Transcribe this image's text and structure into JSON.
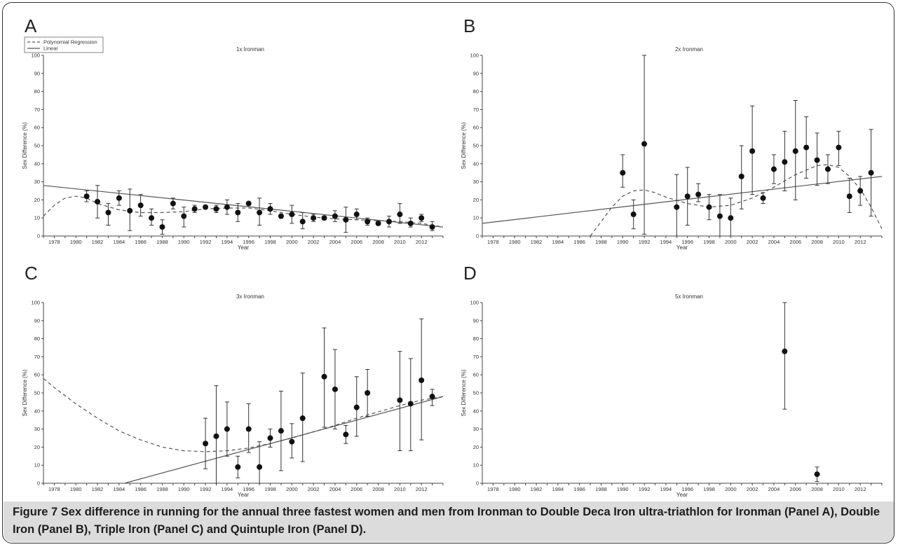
{
  "caption": {
    "prefix": "Figure 7",
    "text": " Sex difference in running for the annual three fastest women and men from Ironman to Double Deca Iron ultra-triathlon for Ironman (Panel A), Double Iron (Panel B), Triple Iron (Panel C) and Quintuple Iron (Panel D)."
  },
  "chart_data": [
    {
      "panel": "A",
      "type": "scatter",
      "title": "1x Ironman",
      "xlabel": "Year",
      "ylabel": "Sex Difference (%)",
      "xlim": [
        1977,
        2014
      ],
      "ylim": [
        0,
        100
      ],
      "x_ticks": [
        1978,
        1980,
        1982,
        1984,
        1986,
        1988,
        1990,
        1992,
        1994,
        1996,
        1998,
        2000,
        2002,
        2004,
        2006,
        2008,
        2010,
        2012
      ],
      "y_ticks": [
        0,
        10,
        20,
        30,
        40,
        50,
        60,
        70,
        80,
        90,
        100
      ],
      "legend": {
        "position": "top-left",
        "entries": [
          "Polynomial Regression",
          "Linear"
        ]
      },
      "points": [
        {
          "x": 1981,
          "y": 22,
          "lo": 19,
          "hi": 25
        },
        {
          "x": 1982,
          "y": 19,
          "lo": 10,
          "hi": 28
        },
        {
          "x": 1983,
          "y": 13,
          "lo": 6,
          "hi": 18
        },
        {
          "x": 1984,
          "y": 21,
          "lo": 17,
          "hi": 25
        },
        {
          "x": 1985,
          "y": 14,
          "lo": 3,
          "hi": 26
        },
        {
          "x": 1986,
          "y": 17,
          "lo": 11,
          "hi": 23
        },
        {
          "x": 1987,
          "y": 10,
          "lo": 6,
          "hi": 15
        },
        {
          "x": 1988,
          "y": 5,
          "lo": 1,
          "hi": 9
        },
        {
          "x": 1989,
          "y": 18,
          "lo": 15,
          "hi": 21
        },
        {
          "x": 1990,
          "y": 11,
          "lo": 5,
          "hi": 16
        },
        {
          "x": 1991,
          "y": 15,
          "lo": 13,
          "hi": 17
        },
        {
          "x": 1992,
          "y": 16,
          "lo": 15,
          "hi": 17
        },
        {
          "x": 1993,
          "y": 15,
          "lo": 13,
          "hi": 17
        },
        {
          "x": 1994,
          "y": 16,
          "lo": 12,
          "hi": 20
        },
        {
          "x": 1995,
          "y": 13,
          "lo": 8,
          "hi": 18
        },
        {
          "x": 1996,
          "y": 18,
          "lo": 17,
          "hi": 19
        },
        {
          "x": 1997,
          "y": 13,
          "lo": 6,
          "hi": 21
        },
        {
          "x": 1998,
          "y": 15,
          "lo": 12,
          "hi": 18
        },
        {
          "x": 1999,
          "y": 11,
          "lo": 10,
          "hi": 12
        },
        {
          "x": 2000,
          "y": 12,
          "lo": 7,
          "hi": 17
        },
        {
          "x": 2001,
          "y": 8,
          "lo": 4,
          "hi": 13
        },
        {
          "x": 2002,
          "y": 10,
          "lo": 8,
          "hi": 12
        },
        {
          "x": 2003,
          "y": 10,
          "lo": 9,
          "hi": 11
        },
        {
          "x": 2004,
          "y": 11,
          "lo": 8,
          "hi": 14
        },
        {
          "x": 2005,
          "y": 9,
          "lo": 2,
          "hi": 16
        },
        {
          "x": 2006,
          "y": 12,
          "lo": 9,
          "hi": 15
        },
        {
          "x": 2007,
          "y": 8,
          "lo": 6,
          "hi": 10
        },
        {
          "x": 2008,
          "y": 7,
          "lo": 6,
          "hi": 8
        },
        {
          "x": 2009,
          "y": 8,
          "lo": 5,
          "hi": 11
        },
        {
          "x": 2010,
          "y": 12,
          "lo": 7,
          "hi": 18
        },
        {
          "x": 2011,
          "y": 7,
          "lo": 5,
          "hi": 10
        },
        {
          "x": 2012,
          "y": 10,
          "lo": 8,
          "hi": 12
        },
        {
          "x": 2013,
          "y": 5,
          "lo": 3,
          "hi": 8
        }
      ],
      "linear": [
        {
          "x": 1977,
          "y": 28
        },
        {
          "x": 2014,
          "y": 5
        }
      ],
      "polynomial": [
        {
          "x": 1977,
          "y": 11
        },
        {
          "x": 1978,
          "y": 17
        },
        {
          "x": 1979,
          "y": 21
        },
        {
          "x": 1980,
          "y": 22
        },
        {
          "x": 1981,
          "y": 21
        },
        {
          "x": 1982,
          "y": 18
        },
        {
          "x": 1984,
          "y": 14.5
        },
        {
          "x": 1986,
          "y": 13
        },
        {
          "x": 1988,
          "y": 13
        },
        {
          "x": 1990,
          "y": 13.5
        },
        {
          "x": 1992,
          "y": 15
        },
        {
          "x": 1994,
          "y": 15.5
        },
        {
          "x": 1996,
          "y": 15.5
        },
        {
          "x": 1998,
          "y": 14
        },
        {
          "x": 2000,
          "y": 12
        },
        {
          "x": 2002,
          "y": 10.5
        },
        {
          "x": 2004,
          "y": 9.5
        },
        {
          "x": 2006,
          "y": 9
        },
        {
          "x": 2008,
          "y": 8.5
        },
        {
          "x": 2010,
          "y": 8
        },
        {
          "x": 2012,
          "y": 7
        },
        {
          "x": 2013,
          "y": 6
        },
        {
          "x": 2014,
          "y": 5
        }
      ]
    },
    {
      "panel": "B",
      "type": "scatter",
      "title": "2x Ironman",
      "xlabel": "Year",
      "ylabel": "Sex Difference (%)",
      "xlim": [
        1977,
        2014
      ],
      "ylim": [
        0,
        100
      ],
      "x_ticks": [
        1978,
        1980,
        1982,
        1984,
        1986,
        1988,
        1990,
        1992,
        1994,
        1996,
        1998,
        2000,
        2002,
        2004,
        2006,
        2008,
        2010,
        2012
      ],
      "y_ticks": [
        0,
        10,
        20,
        30,
        40,
        50,
        60,
        70,
        80,
        90,
        100
      ],
      "points": [
        {
          "x": 1990,
          "y": 35,
          "lo": 27,
          "hi": 45
        },
        {
          "x": 1991,
          "y": 12,
          "lo": 4,
          "hi": 20
        },
        {
          "x": 1992,
          "y": 51,
          "lo": 1,
          "hi": 100
        },
        {
          "x": 1995,
          "y": 16,
          "lo": 0,
          "hi": 34
        },
        {
          "x": 1996,
          "y": 22,
          "lo": 6,
          "hi": 38
        },
        {
          "x": 1997,
          "y": 23,
          "lo": 19,
          "hi": 29
        },
        {
          "x": 1998,
          "y": 16,
          "lo": 9,
          "hi": 23
        },
        {
          "x": 1999,
          "y": 11,
          "lo": 0,
          "hi": 23
        },
        {
          "x": 2000,
          "y": 10,
          "lo": 0,
          "hi": 21
        },
        {
          "x": 2001,
          "y": 33,
          "lo": 15,
          "hi": 50
        },
        {
          "x": 2002,
          "y": 47,
          "lo": 23,
          "hi": 72
        },
        {
          "x": 2003,
          "y": 21,
          "lo": 18,
          "hi": 24
        },
        {
          "x": 2004,
          "y": 37,
          "lo": 29,
          "hi": 45
        },
        {
          "x": 2005,
          "y": 41,
          "lo": 25,
          "hi": 58
        },
        {
          "x": 2006,
          "y": 47,
          "lo": 20,
          "hi": 75
        },
        {
          "x": 2007,
          "y": 49,
          "lo": 32,
          "hi": 66
        },
        {
          "x": 2008,
          "y": 42,
          "lo": 28,
          "hi": 57
        },
        {
          "x": 2009,
          "y": 37,
          "lo": 29,
          "hi": 45
        },
        {
          "x": 2010,
          "y": 49,
          "lo": 39,
          "hi": 58
        },
        {
          "x": 2011,
          "y": 22,
          "lo": 13,
          "hi": 32
        },
        {
          "x": 2012,
          "y": 25,
          "lo": 17,
          "hi": 33
        },
        {
          "x": 2013,
          "y": 35,
          "lo": 11,
          "hi": 59
        }
      ],
      "linear": [
        {
          "x": 1977,
          "y": 7
        },
        {
          "x": 2014,
          "y": 33
        }
      ],
      "polynomial": [
        {
          "x": 1987,
          "y": 0
        },
        {
          "x": 1988,
          "y": 8
        },
        {
          "x": 1989,
          "y": 16
        },
        {
          "x": 1990,
          "y": 22
        },
        {
          "x": 1991,
          "y": 25
        },
        {
          "x": 1992,
          "y": 25.5
        },
        {
          "x": 1993,
          "y": 24
        },
        {
          "x": 1994,
          "y": 21.5
        },
        {
          "x": 1996,
          "y": 18
        },
        {
          "x": 1998,
          "y": 16
        },
        {
          "x": 2000,
          "y": 17
        },
        {
          "x": 2002,
          "y": 21
        },
        {
          "x": 2004,
          "y": 27
        },
        {
          "x": 2006,
          "y": 34
        },
        {
          "x": 2008,
          "y": 39
        },
        {
          "x": 2009,
          "y": 39.5
        },
        {
          "x": 2010,
          "y": 38
        },
        {
          "x": 2011,
          "y": 33
        },
        {
          "x": 2012,
          "y": 26
        },
        {
          "x": 2013,
          "y": 16
        },
        {
          "x": 2014,
          "y": 4
        }
      ]
    },
    {
      "panel": "C",
      "type": "scatter",
      "title": "3x Ironman",
      "xlabel": "Year",
      "ylabel": "Sex Difference (%)",
      "xlim": [
        1977,
        2014
      ],
      "ylim": [
        0,
        100
      ],
      "x_ticks": [
        1978,
        1980,
        1982,
        1984,
        1986,
        1988,
        1990,
        1992,
        1994,
        1996,
        1998,
        2000,
        2002,
        2004,
        2006,
        2008,
        2010,
        2012
      ],
      "y_ticks": [
        0,
        10,
        20,
        30,
        40,
        50,
        60,
        70,
        80,
        90,
        100
      ],
      "points": [
        {
          "x": 1992,
          "y": 22,
          "lo": 8,
          "hi": 36
        },
        {
          "x": 1993,
          "y": 26,
          "lo": 0,
          "hi": 54
        },
        {
          "x": 1994,
          "y": 30,
          "lo": 15,
          "hi": 45
        },
        {
          "x": 1995,
          "y": 9,
          "lo": 3,
          "hi": 15
        },
        {
          "x": 1996,
          "y": 30,
          "lo": 17,
          "hi": 44
        },
        {
          "x": 1997,
          "y": 9,
          "lo": 0,
          "hi": 23
        },
        {
          "x": 1998,
          "y": 25,
          "lo": 20,
          "hi": 30
        },
        {
          "x": 1999,
          "y": 29,
          "lo": 7,
          "hi": 51
        },
        {
          "x": 2000,
          "y": 23,
          "lo": 14,
          "hi": 33
        },
        {
          "x": 2001,
          "y": 36,
          "lo": 12,
          "hi": 61
        },
        {
          "x": 2003,
          "y": 59,
          "lo": 31,
          "hi": 86
        },
        {
          "x": 2004,
          "y": 52,
          "lo": 30,
          "hi": 74
        },
        {
          "x": 2005,
          "y": 27,
          "lo": 22,
          "hi": 32
        },
        {
          "x": 2006,
          "y": 42,
          "lo": 26,
          "hi": 59
        },
        {
          "x": 2007,
          "y": 50,
          "lo": 37,
          "hi": 63
        },
        {
          "x": 2010,
          "y": 46,
          "lo": 18,
          "hi": 73
        },
        {
          "x": 2011,
          "y": 44,
          "lo": 18,
          "hi": 69
        },
        {
          "x": 2012,
          "y": 57,
          "lo": 24,
          "hi": 91
        },
        {
          "x": 2013,
          "y": 48,
          "lo": 43,
          "hi": 52
        }
      ],
      "linear": [
        {
          "x": 1984.5,
          "y": 0
        },
        {
          "x": 2014,
          "y": 48
        }
      ],
      "polynomial": [
        {
          "x": 1977,
          "y": 58
        },
        {
          "x": 1978,
          "y": 53
        },
        {
          "x": 1980,
          "y": 44
        },
        {
          "x": 1982,
          "y": 36
        },
        {
          "x": 1984,
          "y": 29
        },
        {
          "x": 1986,
          "y": 24
        },
        {
          "x": 1988,
          "y": 20
        },
        {
          "x": 1990,
          "y": 18
        },
        {
          "x": 1992,
          "y": 17.5
        },
        {
          "x": 1994,
          "y": 18
        },
        {
          "x": 1996,
          "y": 19.5
        },
        {
          "x": 1998,
          "y": 22
        },
        {
          "x": 2000,
          "y": 25
        },
        {
          "x": 2002,
          "y": 28.5
        },
        {
          "x": 2004,
          "y": 32
        },
        {
          "x": 2006,
          "y": 36
        },
        {
          "x": 2008,
          "y": 39.5
        },
        {
          "x": 2010,
          "y": 43
        },
        {
          "x": 2012,
          "y": 46
        },
        {
          "x": 2014,
          "y": 48
        }
      ]
    },
    {
      "panel": "D",
      "type": "scatter",
      "title": "5x Ironman",
      "xlabel": "Year",
      "ylabel": "Sex Difference (%)",
      "xlim": [
        1977,
        2014
      ],
      "ylim": [
        0,
        100
      ],
      "x_ticks": [
        1978,
        1980,
        1982,
        1984,
        1986,
        1988,
        1990,
        1992,
        1994,
        1996,
        1998,
        2000,
        2002,
        2004,
        2006,
        2008,
        2010,
        2012
      ],
      "y_ticks": [
        0,
        10,
        20,
        30,
        40,
        50,
        60,
        70,
        80,
        90,
        100
      ],
      "points": [
        {
          "x": 2005,
          "y": 73,
          "lo": 41,
          "hi": 100
        },
        {
          "x": 2008,
          "y": 5,
          "lo": 1,
          "hi": 9
        }
      ]
    }
  ]
}
